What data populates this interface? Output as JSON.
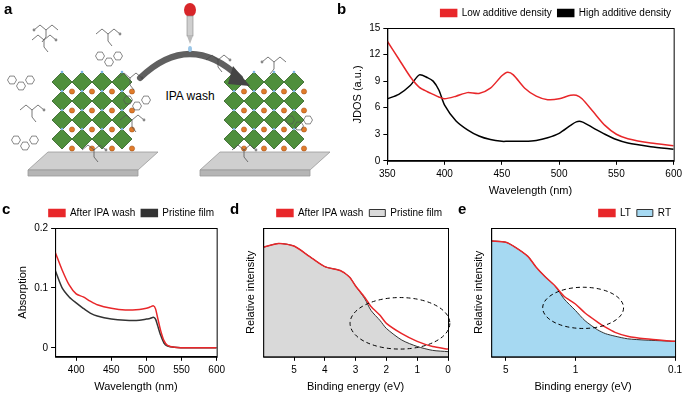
{
  "chart_data": [
    {
      "panel": "b",
      "type": "line",
      "x_label": "Wavelength (nm)",
      "y_label": "JDOS (a.u.)",
      "xlim": [
        350,
        600
      ],
      "xticks": [
        350,
        400,
        450,
        500,
        550,
        600
      ],
      "ylim": [
        0,
        15
      ],
      "yticks": [
        0,
        3,
        6,
        9,
        12,
        15
      ],
      "grid": false,
      "legend": "upper right",
      "x": [
        350,
        360,
        370,
        378,
        385,
        390,
        395,
        400,
        410,
        420,
        430,
        440,
        450,
        455,
        460,
        470,
        480,
        490,
        500,
        510,
        515,
        520,
        530,
        540,
        550,
        560,
        580,
        600
      ],
      "series": [
        {
          "name": "Low additive density",
          "color": "#e8272a",
          "values": [
            13.5,
            11.5,
            9.5,
            8.3,
            7.8,
            7.5,
            7.2,
            7.0,
            7.3,
            7.7,
            7.6,
            8.2,
            9.6,
            10.0,
            9.7,
            8.2,
            7.3,
            6.9,
            7.0,
            7.4,
            7.4,
            7.0,
            5.5,
            4.0,
            3.0,
            2.5,
            2.0,
            1.7
          ]
        },
        {
          "name": "High additive density",
          "color": "#000000",
          "values": [
            7.0,
            7.5,
            8.5,
            9.7,
            9.4,
            9.0,
            8.0,
            6.3,
            4.5,
            3.5,
            2.8,
            2.4,
            2.2,
            2.2,
            2.2,
            2.2,
            2.3,
            2.6,
            3.1,
            4.0,
            4.4,
            4.4,
            3.7,
            3.0,
            2.4,
            2.0,
            1.6,
            1.3
          ]
        }
      ]
    },
    {
      "panel": "c",
      "type": "line",
      "x_label": "Wavelength (nm)",
      "y_label": "Absorption",
      "xlim": [
        370,
        600
      ],
      "xticks": [
        400,
        450,
        500,
        550,
        600
      ],
      "ylim": [
        -0.015,
        0.2
      ],
      "yticks": [
        0,
        0.1,
        0.2
      ],
      "grid": false,
      "legend": "upper right",
      "x": [
        370,
        380,
        390,
        400,
        410,
        420,
        430,
        450,
        470,
        490,
        500,
        505,
        510,
        513,
        516,
        520,
        525,
        530,
        540,
        560,
        600
      ],
      "series": [
        {
          "name": "After IPA wash",
          "color": "#e8272a",
          "values": [
            0.16,
            0.13,
            0.105,
            0.09,
            0.085,
            0.078,
            0.072,
            0.066,
            0.063,
            0.064,
            0.066,
            0.068,
            0.07,
            0.065,
            0.05,
            0.03,
            0.012,
            0.004,
            0.001,
            0,
            0
          ]
        },
        {
          "name": "Pristine film",
          "color": "#333333",
          "values": [
            0.13,
            0.1,
            0.085,
            0.075,
            0.066,
            0.058,
            0.053,
            0.048,
            0.046,
            0.046,
            0.048,
            0.049,
            0.051,
            0.048,
            0.037,
            0.022,
            0.008,
            0.003,
            0.001,
            0,
            0
          ]
        }
      ]
    },
    {
      "panel": "d",
      "type": "line",
      "x_label": "Binding energy (eV)",
      "y_label": "Relative intensity",
      "xlim": [
        6,
        0
      ],
      "xticks": [
        5,
        4,
        3,
        2,
        1,
        0
      ],
      "ylim": [
        0,
        1
      ],
      "tick_labels": "x",
      "grid": false,
      "legend": "upper right",
      "x": [
        6,
        5.5,
        5,
        4.5,
        4,
        3.5,
        3.2,
        3,
        2.7,
        2.5,
        2.2,
        2,
        1.5,
        1,
        0.5,
        0
      ],
      "series": [
        {
          "name": "After IPA wash",
          "color": "#e8272a",
          "values": [
            0.85,
            0.88,
            0.86,
            0.78,
            0.7,
            0.67,
            0.62,
            0.55,
            0.46,
            0.39,
            0.32,
            0.26,
            0.18,
            0.12,
            0.08,
            0.06
          ]
        },
        {
          "name": "Pristine film",
          "color": "#d9d9d9",
          "type": "area",
          "values": [
            0.85,
            0.88,
            0.86,
            0.78,
            0.7,
            0.67,
            0.62,
            0.55,
            0.45,
            0.36,
            0.28,
            0.22,
            0.13,
            0.08,
            0.05,
            0.04
          ]
        }
      ]
    },
    {
      "panel": "e",
      "type": "line",
      "x_label": "Binding energy (eV)",
      "y_label": "Relative intensity",
      "xlim": [
        7,
        0.1
      ],
      "xticks": [
        5,
        1,
        0.1
      ],
      "log": "x",
      "ylim": [
        0,
        1
      ],
      "tick_labels": "x",
      "grid": false,
      "legend": "upper right",
      "x": [
        7,
        5,
        4,
        3,
        2.5,
        2,
        1.6,
        1.3,
        1,
        0.8,
        0.6,
        0.5,
        0.4,
        0.3,
        0.2,
        0.1
      ],
      "series": [
        {
          "name": "LT",
          "color": "#e8272a",
          "values": [
            0.9,
            0.89,
            0.85,
            0.78,
            0.7,
            0.62,
            0.55,
            0.47,
            0.41,
            0.34,
            0.27,
            0.23,
            0.19,
            0.16,
            0.14,
            0.12
          ]
        },
        {
          "name": "RT",
          "color": "#a6d9f2",
          "type": "area",
          "values": [
            0.9,
            0.89,
            0.85,
            0.78,
            0.7,
            0.62,
            0.55,
            0.45,
            0.36,
            0.28,
            0.21,
            0.18,
            0.16,
            0.14,
            0.13,
            0.12
          ]
        }
      ]
    }
  ],
  "diagram": {
    "panel": "a",
    "arrow_label": "IPA wash"
  }
}
